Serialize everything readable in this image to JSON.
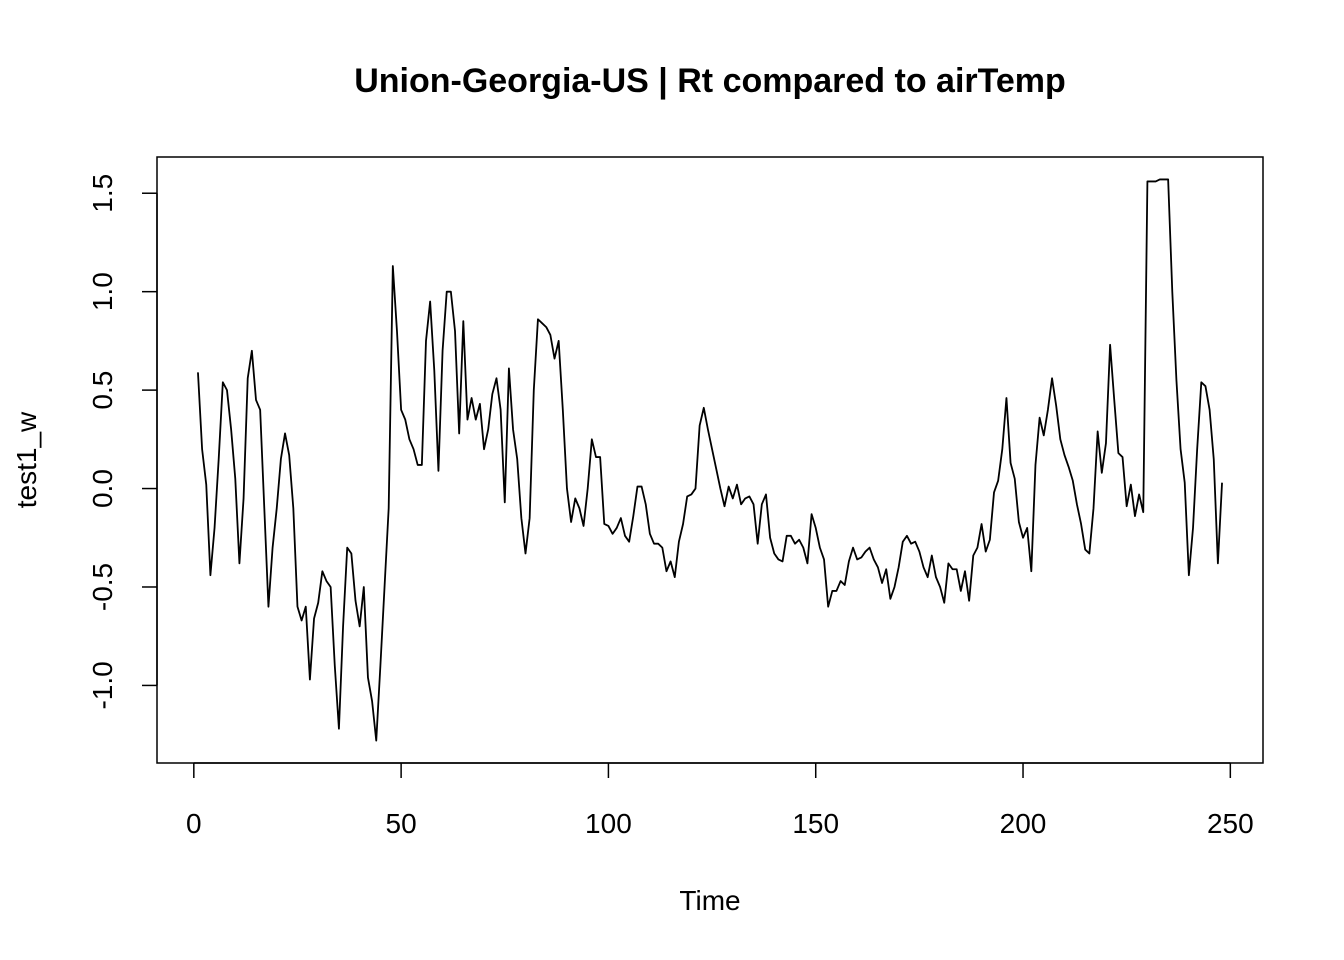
{
  "chart_data": {
    "type": "line",
    "title": "Union-Georgia-US | Rt compared to airTemp",
    "x_label": "Time",
    "y_label": "test1_w",
    "x": [
      1,
      2,
      3,
      4,
      5,
      6,
      7,
      8,
      9,
      10,
      11,
      12,
      13,
      14,
      15,
      16,
      17,
      18,
      19,
      20,
      21,
      22,
      23,
      24,
      25,
      26,
      27,
      28,
      29,
      30,
      31,
      32,
      33,
      34,
      35,
      36,
      37,
      38,
      39,
      40,
      41,
      42,
      43,
      44,
      45,
      46,
      47,
      48,
      49,
      50,
      51,
      52,
      53,
      54,
      55,
      56,
      57,
      58,
      59,
      60,
      61,
      62,
      63,
      64,
      65,
      66,
      67,
      68,
      69,
      70,
      71,
      72,
      73,
      74,
      75,
      76,
      77,
      78,
      79,
      80,
      81,
      82,
      83,
      84,
      85,
      86,
      87,
      88,
      89,
      90,
      91,
      92,
      93,
      94,
      95,
      96,
      97,
      98,
      99,
      100,
      101,
      102,
      103,
      104,
      105,
      106,
      107,
      108,
      109,
      110,
      111,
      112,
      113,
      114,
      115,
      116,
      117,
      118,
      119,
      120,
      121,
      122,
      123,
      124,
      125,
      126,
      127,
      128,
      129,
      130,
      131,
      132,
      133,
      134,
      135,
      136,
      137,
      138,
      139,
      140,
      141,
      142,
      143,
      144,
      145,
      146,
      147,
      148,
      149,
      150,
      151,
      152,
      153,
      154,
      155,
      156,
      157,
      158,
      159,
      160,
      161,
      162,
      163,
      164,
      165,
      166,
      167,
      168,
      169,
      170,
      171,
      172,
      173,
      174,
      175,
      176,
      177,
      178,
      179,
      180,
      181,
      182,
      183,
      184,
      185,
      186,
      187,
      188,
      189,
      190,
      191,
      192,
      193,
      194,
      195,
      196,
      197,
      198,
      199,
      200,
      201,
      202,
      203,
      204,
      205,
      206,
      207,
      208,
      209,
      210,
      211,
      212,
      213,
      214,
      215,
      216,
      217,
      218,
      219,
      220,
      221,
      222,
      223,
      224,
      225,
      226,
      227,
      228,
      229,
      230,
      231,
      232,
      233,
      234,
      235,
      236,
      237,
      238,
      239,
      240,
      241,
      242,
      243,
      244,
      245,
      246,
      247,
      248
    ],
    "series": [
      {
        "name": "test1_w",
        "color": "#000000",
        "values": [
          0.59,
          0.2,
          0.02,
          -0.44,
          -0.2,
          0.15,
          0.54,
          0.5,
          0.3,
          0.05,
          -0.38,
          -0.05,
          0.56,
          0.7,
          0.45,
          0.4,
          -0.1,
          -0.6,
          -0.3,
          -0.1,
          0.15,
          0.28,
          0.17,
          -0.1,
          -0.6,
          -0.67,
          -0.6,
          -0.97,
          -0.66,
          -0.58,
          -0.42,
          -0.47,
          -0.5,
          -0.9,
          -1.22,
          -0.7,
          -0.3,
          -0.33,
          -0.57,
          -0.7,
          -0.5,
          -0.96,
          -1.08,
          -1.28,
          -0.9,
          -0.5,
          -0.1,
          1.13,
          0.8,
          0.4,
          0.35,
          0.25,
          0.2,
          0.12,
          0.12,
          0.75,
          0.95,
          0.6,
          0.09,
          0.7,
          1.0,
          1.0,
          0.8,
          0.28,
          0.85,
          0.35,
          0.46,
          0.35,
          0.43,
          0.2,
          0.3,
          0.48,
          0.56,
          0.4,
          -0.07,
          0.61,
          0.3,
          0.15,
          -0.15,
          -0.33,
          -0.15,
          0.5,
          0.86,
          0.84,
          0.82,
          0.78,
          0.66,
          0.75,
          0.4,
          0.0,
          -0.17,
          -0.05,
          -0.1,
          -0.19,
          0.0,
          0.25,
          0.16,
          0.16,
          -0.18,
          -0.19,
          -0.23,
          -0.2,
          -0.15,
          -0.24,
          -0.27,
          -0.14,
          0.01,
          0.01,
          -0.08,
          -0.23,
          -0.28,
          -0.28,
          -0.3,
          -0.42,
          -0.37,
          -0.45,
          -0.27,
          -0.18,
          -0.04,
          -0.03,
          0.0,
          0.32,
          0.41,
          0.3,
          0.2,
          0.1,
          0.0,
          -0.09,
          0.01,
          -0.05,
          0.02,
          -0.08,
          -0.05,
          -0.04,
          -0.08,
          -0.28,
          -0.08,
          -0.03,
          -0.25,
          -0.33,
          -0.36,
          -0.37,
          -0.24,
          -0.24,
          -0.28,
          -0.26,
          -0.3,
          -0.38,
          -0.13,
          -0.2,
          -0.3,
          -0.36,
          -0.6,
          -0.52,
          -0.52,
          -0.47,
          -0.49,
          -0.37,
          -0.3,
          -0.36,
          -0.35,
          -0.32,
          -0.3,
          -0.36,
          -0.4,
          -0.48,
          -0.41,
          -0.56,
          -0.5,
          -0.4,
          -0.27,
          -0.24,
          -0.28,
          -0.27,
          -0.32,
          -0.4,
          -0.45,
          -0.34,
          -0.45,
          -0.5,
          -0.58,
          -0.38,
          -0.41,
          -0.41,
          -0.52,
          -0.42,
          -0.57,
          -0.34,
          -0.3,
          -0.18,
          -0.32,
          -0.26,
          -0.02,
          0.04,
          0.2,
          0.46,
          0.13,
          0.05,
          -0.17,
          -0.25,
          -0.2,
          -0.42,
          0.12,
          0.36,
          0.27,
          0.4,
          0.56,
          0.42,
          0.25,
          0.17,
          0.11,
          0.04,
          -0.08,
          -0.18,
          -0.31,
          -0.33,
          -0.1,
          0.29,
          0.08,
          0.23,
          0.73,
          0.45,
          0.18,
          0.16,
          -0.09,
          0.02,
          -0.14,
          -0.03,
          -0.12,
          1.56,
          1.56,
          1.56,
          1.57,
          1.57,
          1.57,
          1.0,
          0.55,
          0.2,
          0.03,
          -0.44,
          -0.2,
          0.2,
          0.54,
          0.52,
          0.4,
          0.15,
          -0.38,
          0.03
        ]
      }
    ],
    "xlim": [
      -8.88,
      257.88
    ],
    "ylim": [
      -1.394,
      1.684
    ],
    "xticks": [
      0,
      50,
      100,
      150,
      200,
      250
    ],
    "yticks": [
      {
        "value": -1,
        "label": "-1.0"
      },
      {
        "value": -0.5,
        "label": "-0.5"
      },
      {
        "value": 0,
        "label": "0.0"
      },
      {
        "value": 0.5,
        "label": "0.5"
      },
      {
        "value": 1,
        "label": "1.0"
      },
      {
        "value": 1.5,
        "label": "1.5"
      }
    ]
  }
}
